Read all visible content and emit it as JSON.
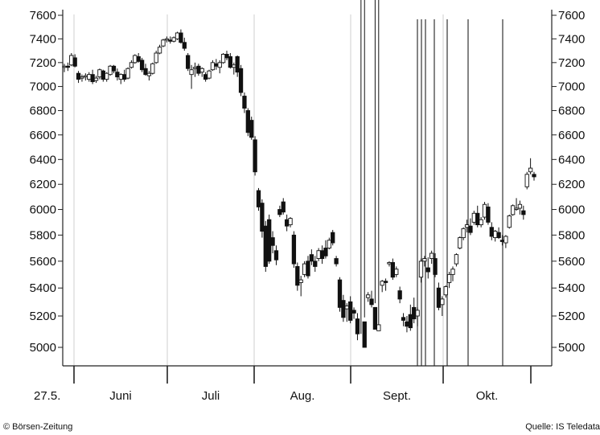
{
  "chart_data": {
    "type": "candlestick",
    "y_ticks": [
      5000,
      5200,
      5400,
      5600,
      5800,
      6000,
      6200,
      6400,
      6600,
      6800,
      7000,
      7200,
      7400,
      7600
    ],
    "y_tick_labels": [
      "5000",
      "5200",
      "5400",
      "5600",
      "5800",
      "6000",
      "6200",
      "6400",
      "6600",
      "6800",
      "7000",
      "7200",
      "7400",
      "7600"
    ],
    "ylim": [
      4870,
      7640
    ],
    "start_label": "27.5.",
    "months": [
      {
        "label": "Juni",
        "start": 4,
        "end": 25
      },
      {
        "label": "Juli",
        "start": 25,
        "end": 46
      },
      {
        "label": "Aug.",
        "start": 46,
        "end": 69
      },
      {
        "label": "Sept.",
        "start": 69,
        "end": 90
      },
      {
        "label": "Okt.",
        "start": 90,
        "end": 110
      }
    ],
    "grid": "vertical at month boundaries",
    "x_count": 110,
    "event_lines": [
      84.5,
      85.5,
      87,
      88.5,
      91.5,
      97.5,
      105.5
    ],
    "candles": [
      [
        0,
        7160,
        7190,
        7120,
        7170
      ],
      [
        1,
        7170,
        7200,
        7130,
        7160
      ],
      [
        2,
        7180,
        7280,
        7170,
        7260
      ],
      [
        3,
        7240,
        7270,
        7160,
        7170
      ],
      [
        4,
        7110,
        7130,
        7030,
        7060
      ],
      [
        5,
        7070,
        7100,
        7040,
        7080
      ],
      [
        6,
        7080,
        7110,
        7050,
        7090
      ],
      [
        7,
        7060,
        7120,
        7040,
        7100
      ],
      [
        8,
        7100,
        7140,
        7020,
        7040
      ],
      [
        9,
        7050,
        7090,
        7030,
        7070
      ],
      [
        10,
        7080,
        7150,
        7060,
        7140
      ],
      [
        11,
        7130,
        7140,
        7040,
        7060
      ],
      [
        12,
        7060,
        7120,
        7040,
        7110
      ],
      [
        13,
        7100,
        7180,
        7090,
        7170
      ],
      [
        14,
        7170,
        7180,
        7110,
        7130
      ],
      [
        15,
        7120,
        7150,
        7050,
        7080
      ],
      [
        16,
        7060,
        7110,
        7020,
        7100
      ],
      [
        17,
        7100,
        7140,
        7040,
        7060
      ],
      [
        18,
        7070,
        7160,
        7060,
        7150
      ],
      [
        19,
        7160,
        7220,
        7150,
        7200
      ],
      [
        20,
        7200,
        7270,
        7190,
        7260
      ],
      [
        21,
        7250,
        7280,
        7200,
        7210
      ],
      [
        22,
        7220,
        7240,
        7120,
        7140
      ],
      [
        23,
        7150,
        7190,
        7090,
        7100
      ],
      [
        24,
        7090,
        7130,
        7050,
        7110
      ],
      [
        25,
        7110,
        7200,
        7100,
        7190
      ],
      [
        26,
        7200,
        7300,
        7190,
        7280
      ],
      [
        27,
        7280,
        7350,
        7270,
        7330
      ],
      [
        28,
        7340,
        7400,
        7330,
        7390
      ],
      [
        29,
        7390,
        7420,
        7370,
        7400
      ],
      [
        30,
        7390,
        7420,
        7360,
        7380
      ],
      [
        31,
        7380,
        7420,
        7370,
        7410
      ],
      [
        32,
        7400,
        7460,
        7390,
        7450
      ],
      [
        33,
        7450,
        7480,
        7360,
        7370
      ],
      [
        34,
        7370,
        7410,
        7300,
        7320
      ],
      [
        35,
        7260,
        7280,
        7130,
        7150
      ],
      [
        36,
        7100,
        7180,
        6980,
        7140
      ],
      [
        37,
        7150,
        7200,
        7080,
        7160
      ],
      [
        38,
        7170,
        7190,
        7090,
        7110
      ],
      [
        39,
        7120,
        7160,
        7080,
        7150
      ],
      [
        40,
        7100,
        7120,
        7040,
        7060
      ],
      [
        41,
        7070,
        7140,
        7060,
        7130
      ],
      [
        42,
        7140,
        7220,
        7130,
        7200
      ],
      [
        43,
        7190,
        7230,
        7140,
        7170
      ],
      [
        44,
        7160,
        7220,
        7110,
        7200
      ],
      [
        45,
        7200,
        7280,
        7190,
        7270
      ],
      [
        46,
        7270,
        7300,
        7220,
        7240
      ],
      [
        47,
        7250,
        7280,
        7150,
        7160
      ],
      [
        48,
        7160,
        7200,
        7100,
        7180
      ],
      [
        49,
        7250,
        7260,
        7080,
        7120
      ],
      [
        50,
        7150,
        7180,
        6920,
        6950
      ],
      [
        51,
        6920,
        6950,
        6780,
        6820
      ],
      [
        52,
        6800,
        6820,
        6590,
        6620
      ],
      [
        53,
        6720,
        6750,
        6560,
        6580
      ],
      [
        54,
        6560,
        6590,
        6270,
        6300
      ],
      [
        55,
        6150,
        6170,
        5990,
        6020
      ],
      [
        56,
        6050,
        6080,
        5780,
        5830
      ],
      [
        57,
        5870,
        5910,
        5520,
        5560
      ],
      [
        58,
        5920,
        5960,
        5580,
        5600
      ],
      [
        59,
        5780,
        5830,
        5660,
        5720
      ],
      [
        60,
        5680,
        5720,
        5570,
        5610
      ],
      [
        61,
        6000,
        6030,
        5940,
        5960
      ],
      [
        62,
        6060,
        6090,
        5960,
        5980
      ],
      [
        63,
        5920,
        5960,
        5830,
        5870
      ],
      [
        64,
        5880,
        5940,
        5860,
        5930
      ],
      [
        65,
        5800,
        5830,
        5550,
        5580
      ],
      [
        66,
        5560,
        5590,
        5380,
        5420
      ],
      [
        67,
        5440,
        5490,
        5340,
        5460
      ],
      [
        68,
        5500,
        5600,
        5480,
        5580
      ],
      [
        69,
        5600,
        5640,
        5470,
        5490
      ],
      [
        70,
        5650,
        5690,
        5570,
        5600
      ],
      [
        71,
        5600,
        5640,
        5520,
        5560
      ],
      [
        72,
        5620,
        5700,
        5600,
        5680
      ],
      [
        73,
        5680,
        5720,
        5580,
        5620
      ],
      [
        74,
        5700,
        5760,
        5620,
        5640
      ],
      [
        75,
        5700,
        5780,
        5690,
        5760
      ],
      [
        76,
        5820,
        5840,
        5720,
        5740
      ],
      [
        77,
        5620,
        5640,
        5560,
        5580
      ],
      [
        78,
        5460,
        5480,
        5230,
        5260
      ],
      [
        79,
        5310,
        5350,
        5160,
        5190
      ],
      [
        80,
        5250,
        5290,
        5160,
        5270
      ],
      [
        81,
        5300,
        5340,
        5150,
        5170
      ],
      [
        82,
        5240,
        5260,
        5180,
        5220
      ],
      [
        83,
        5180,
        5220,
        5040,
        5080
      ],
      [
        84,
        5060,
        5080,
        4950,
        4990
      ],
      [
        85,
        5160,
        5190,
        4960,
        5000
      ],
      [
        86,
        5330,
        5370,
        5300,
        5350
      ],
      [
        87,
        5320,
        5380,
        5260,
        5280
      ],
      [
        88,
        5260,
        5290,
        4940,
        5110
      ],
      [
        89,
        5100,
        5140,
        4970,
        5140
      ],
      [
        90,
        5420,
        5460,
        5370,
        5450
      ],
      [
        91,
        5450,
        5470,
        5380,
        5440
      ],
      [
        92,
        5580,
        5600,
        5560,
        5590
      ],
      [
        93,
        5590,
        5620,
        5460,
        5480
      ],
      [
        94,
        5500,
        5560,
        5480,
        5540
      ],
      [
        95,
        5380,
        5410,
        5290,
        5320
      ],
      [
        96,
        5190,
        5220,
        5130,
        5170
      ],
      [
        97,
        5160,
        5200,
        5090,
        5130
      ],
      [
        98,
        5210,
        5280,
        5100,
        5120
      ],
      [
        99,
        5260,
        5330,
        5150,
        5180
      ],
      [
        100,
        5200,
        5260,
        5130,
        5240
      ],
      [
        101,
        5480,
        5620,
        5440,
        5600
      ],
      [
        102,
        5600,
        5640,
        5560,
        5620
      ],
      [
        103,
        5550,
        5630,
        5470,
        5520
      ],
      [
        104,
        5620,
        5680,
        5580,
        5660
      ],
      [
        105,
        5620,
        5660,
        5480,
        5500
      ],
      [
        106,
        5400,
        5440,
        5240,
        5260
      ],
      [
        107,
        5280,
        5340,
        5200,
        5320
      ],
      [
        108,
        5350,
        5420,
        5330,
        5410
      ],
      [
        109,
        5440,
        5520,
        5400,
        5500
      ]
    ],
    "candles_tail": [
      [
        110,
        5500,
        5560,
        5450,
        5540
      ],
      [
        111,
        5580,
        5660,
        5560,
        5650
      ],
      [
        112,
        5700,
        5790,
        5690,
        5780
      ],
      [
        113,
        5780,
        5860,
        5760,
        5850
      ],
      [
        114,
        5860,
        5920,
        5820,
        5880
      ],
      [
        115,
        5870,
        5930,
        5800,
        5820
      ],
      [
        116,
        5900,
        5990,
        5880,
        5970
      ],
      [
        117,
        5970,
        6030,
        5860,
        5880
      ],
      [
        118,
        5880,
        5940,
        5860,
        5920
      ],
      [
        119,
        5940,
        6060,
        5920,
        6040
      ],
      [
        120,
        6020,
        6050,
        5880,
        5900
      ],
      [
        121,
        5860,
        5900,
        5760,
        5790
      ],
      [
        122,
        5780,
        5840,
        5750,
        5830
      ],
      [
        123,
        5820,
        5860,
        5770,
        5780
      ],
      [
        124,
        5760,
        5800,
        5720,
        5750
      ],
      [
        125,
        5740,
        5800,
        5700,
        5790
      ],
      [
        126,
        5860,
        5960,
        5850,
        5950
      ],
      [
        127,
        5960,
        6040,
        5950,
        6030
      ],
      [
        128,
        6000,
        6090,
        5990,
        6010
      ],
      [
        129,
        6010,
        6070,
        5960,
        6040
      ],
      [
        130,
        5990,
        6030,
        5920,
        5960
      ],
      [
        131,
        6180,
        6300,
        6160,
        6280
      ],
      [
        132,
        6300,
        6410,
        6280,
        6330
      ],
      [
        133,
        6280,
        6300,
        6230,
        6260
      ]
    ]
  },
  "footer": {
    "left": "© Börsen-Zeitung",
    "right": "Quelle: IS Teledata"
  }
}
